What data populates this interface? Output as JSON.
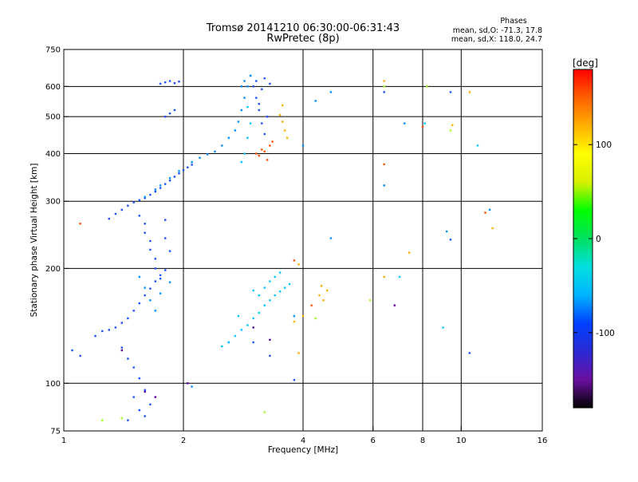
{
  "chart_data": {
    "type": "scatter",
    "title": "Tromsø 20141210 06:30:00-06:31:43",
    "subtitle": "RwPretec (8p)",
    "info": {
      "heading": "Phases",
      "line_o": "mean, sd,O: -71.3, 17.8",
      "line_x": "mean, sd,X: 118.0, 24.7"
    },
    "xlabel": "Frequency [MHz]",
    "ylabel": "Stationary phase Virtual Height [km]",
    "x_scale": "log",
    "y_scale": "log",
    "xlim": [
      1,
      16
    ],
    "ylim": [
      75,
      750
    ],
    "x_ticks": [
      1,
      2,
      4,
      6,
      8,
      10,
      16
    ],
    "x_tick_labels": [
      "1",
      "2",
      "4",
      "6",
      "8",
      "10",
      "16"
    ],
    "y_ticks": [
      75,
      100,
      200,
      300,
      400,
      500,
      600,
      750
    ],
    "y_tick_labels": [
      "75",
      "100",
      "200",
      "300",
      "400",
      "500",
      "600",
      "750"
    ],
    "grid": true,
    "colorbar": {
      "label": "[deg]",
      "range": [
        -180,
        180
      ],
      "ticks": [
        100,
        0,
        -100
      ],
      "tick_labels": [
        "100",
        "0",
        "-100"
      ],
      "stops": [
        "#000000",
        "#6a0fa0",
        "#2a2ad4",
        "#0040ff",
        "#00b4ff",
        "#00e0e0",
        "#00e060",
        "#00ff00",
        "#d8f000",
        "#ffff00",
        "#ffb000",
        "#ff6000",
        "#ff0000"
      ]
    },
    "series": [
      {
        "phase": -70,
        "color": "#1a4fff",
        "points": [
          [
            1.05,
            122
          ],
          [
            1.1,
            118
          ],
          [
            1.2,
            133
          ],
          [
            1.25,
            137
          ],
          [
            1.3,
            138
          ],
          [
            1.35,
            140
          ],
          [
            1.4,
            144
          ],
          [
            1.45,
            148
          ],
          [
            1.5,
            155
          ],
          [
            1.55,
            162
          ],
          [
            1.6,
            170
          ],
          [
            1.65,
            177
          ],
          [
            1.7,
            185
          ],
          [
            1.75,
            192
          ],
          [
            1.8,
            198
          ],
          [
            1.4,
            124
          ],
          [
            1.45,
            116
          ],
          [
            1.5,
            110
          ],
          [
            1.55,
            103
          ],
          [
            1.5,
            92
          ],
          [
            1.55,
            85
          ],
          [
            1.6,
            82
          ],
          [
            1.65,
            88
          ],
          [
            1.45,
            80
          ],
          [
            1.6,
            96
          ],
          [
            1.3,
            270
          ],
          [
            1.35,
            278
          ],
          [
            1.4,
            285
          ],
          [
            1.45,
            292
          ],
          [
            1.5,
            298
          ],
          [
            1.55,
            302
          ],
          [
            1.6,
            306
          ],
          [
            1.65,
            312
          ],
          [
            1.7,
            318
          ],
          [
            1.75,
            325
          ],
          [
            1.8,
            333
          ],
          [
            1.85,
            340
          ],
          [
            1.9,
            348
          ],
          [
            1.95,
            355
          ],
          [
            2.0,
            362
          ],
          [
            2.05,
            368
          ],
          [
            2.1,
            374
          ],
          [
            1.55,
            275
          ],
          [
            1.6,
            262
          ],
          [
            1.6,
            248
          ],
          [
            1.65,
            236
          ],
          [
            1.65,
            224
          ],
          [
            1.7,
            212
          ],
          [
            1.7,
            200
          ],
          [
            1.75,
            188
          ],
          [
            1.8,
            240
          ],
          [
            1.85,
            222
          ],
          [
            1.8,
            268
          ],
          [
            3.0,
            600
          ],
          [
            3.05,
            560
          ],
          [
            3.1,
            520
          ],
          [
            3.15,
            480
          ],
          [
            3.2,
            450
          ],
          [
            3.25,
            500
          ],
          [
            3.05,
            620
          ],
          [
            3.15,
            590
          ],
          [
            3.3,
            610
          ],
          [
            3.1,
            540
          ],
          [
            2.95,
            640
          ],
          [
            3.2,
            630
          ],
          [
            1.75,
            610
          ],
          [
            1.8,
            615
          ],
          [
            1.85,
            620
          ],
          [
            1.9,
            612
          ],
          [
            1.95,
            618
          ],
          [
            1.8,
            500
          ],
          [
            1.85,
            510
          ],
          [
            1.9,
            520
          ],
          [
            2.6,
            128
          ],
          [
            3.0,
            128
          ],
          [
            3.3,
            118
          ],
          [
            3.8,
            102
          ],
          [
            9.4,
            238
          ],
          [
            9.4,
            580
          ],
          [
            10.5,
            120
          ],
          [
            6.4,
            580
          ]
        ]
      },
      {
        "phase": -55,
        "color": "#0090ff",
        "points": [
          [
            1.6,
            308
          ],
          [
            1.7,
            322
          ],
          [
            1.75,
            330
          ],
          [
            1.85,
            345
          ],
          [
            1.95,
            360
          ],
          [
            2.1,
            380
          ],
          [
            2.2,
            390
          ],
          [
            2.3,
            398
          ],
          [
            2.4,
            405
          ],
          [
            2.5,
            420
          ],
          [
            2.6,
            440
          ],
          [
            2.7,
            460
          ],
          [
            2.75,
            485
          ],
          [
            2.8,
            520
          ],
          [
            2.85,
            560
          ],
          [
            2.9,
            600
          ],
          [
            2.95,
            640
          ],
          [
            2.85,
            620
          ],
          [
            2.8,
            600
          ],
          [
            1.55,
            190
          ],
          [
            1.6,
            178
          ],
          [
            1.65,
            165
          ],
          [
            1.7,
            155
          ],
          [
            1.75,
            172
          ],
          [
            1.85,
            184
          ],
          [
            2.1,
            98
          ],
          [
            4.3,
            550
          ],
          [
            4.7,
            580
          ],
          [
            4.0,
            420
          ],
          [
            7.2,
            480
          ],
          [
            9.2,
            250
          ],
          [
            4.7,
            240
          ],
          [
            3.8,
            150
          ],
          [
            6.4,
            330
          ],
          [
            11.8,
            285
          ]
        ]
      },
      {
        "phase": -30,
        "color": "#00c8ff",
        "points": [
          [
            2.5,
            125
          ],
          [
            2.6,
            128
          ],
          [
            2.7,
            133
          ],
          [
            2.8,
            138
          ],
          [
            2.9,
            142
          ],
          [
            3.0,
            148
          ],
          [
            3.1,
            153
          ],
          [
            3.2,
            160
          ],
          [
            3.3,
            165
          ],
          [
            3.4,
            170
          ],
          [
            3.5,
            174
          ],
          [
            3.6,
            178
          ],
          [
            3.7,
            182
          ],
          [
            3.3,
            185
          ],
          [
            3.2,
            178
          ],
          [
            3.1,
            170
          ],
          [
            3.4,
            190
          ],
          [
            2.9,
            530
          ],
          [
            2.95,
            480
          ],
          [
            2.9,
            440
          ],
          [
            2.85,
            400
          ],
          [
            2.8,
            380
          ],
          [
            3.0,
            175
          ],
          [
            3.5,
            195
          ],
          [
            2.75,
            150
          ],
          [
            8.1,
            480
          ],
          [
            11.0,
            420
          ],
          [
            7.0,
            190
          ],
          [
            9.0,
            140
          ]
        ]
      },
      {
        "phase": 100,
        "color": "#ffb000",
        "points": [
          [
            3.5,
            505
          ],
          [
            3.55,
            485
          ],
          [
            3.6,
            460
          ],
          [
            3.65,
            440
          ],
          [
            3.55,
            535
          ],
          [
            4.4,
            170
          ],
          [
            4.5,
            165
          ],
          [
            4.6,
            175
          ],
          [
            4.45,
            180
          ],
          [
            3.9,
            205
          ],
          [
            3.8,
            145
          ],
          [
            4.0,
            150
          ],
          [
            6.4,
            620
          ],
          [
            9.5,
            475
          ],
          [
            6.4,
            190
          ],
          [
            3.9,
            120
          ],
          [
            10.5,
            580
          ],
          [
            12.0,
            255
          ],
          [
            7.4,
            220
          ]
        ]
      },
      {
        "phase": 150,
        "color": "#ff5000",
        "points": [
          [
            3.1,
            395
          ],
          [
            3.2,
            405
          ],
          [
            3.3,
            420
          ],
          [
            3.25,
            385
          ],
          [
            3.35,
            430
          ],
          [
            3.15,
            410
          ],
          [
            3.05,
            400
          ],
          [
            11.5,
            280
          ],
          [
            4.2,
            160
          ],
          [
            1.1,
            262
          ],
          [
            3.8,
            210
          ],
          [
            8.0,
            470
          ],
          [
            6.4,
            375
          ]
        ]
      },
      {
        "phase": 20,
        "color": "#a0ff20",
        "points": [
          [
            1.25,
            80
          ],
          [
            1.4,
            81
          ],
          [
            3.2,
            84
          ],
          [
            4.3,
            148
          ],
          [
            6.4,
            600
          ],
          [
            8.2,
            600
          ],
          [
            9.4,
            460
          ],
          [
            5.9,
            165
          ]
        ]
      },
      {
        "phase": -150,
        "color": "#6000a0",
        "points": [
          [
            1.4,
            122
          ],
          [
            1.6,
            95
          ],
          [
            1.7,
            92
          ],
          [
            3.0,
            140
          ],
          [
            2.05,
            100
          ],
          [
            3.3,
            130
          ],
          [
            6.8,
            160
          ]
        ]
      }
    ]
  }
}
